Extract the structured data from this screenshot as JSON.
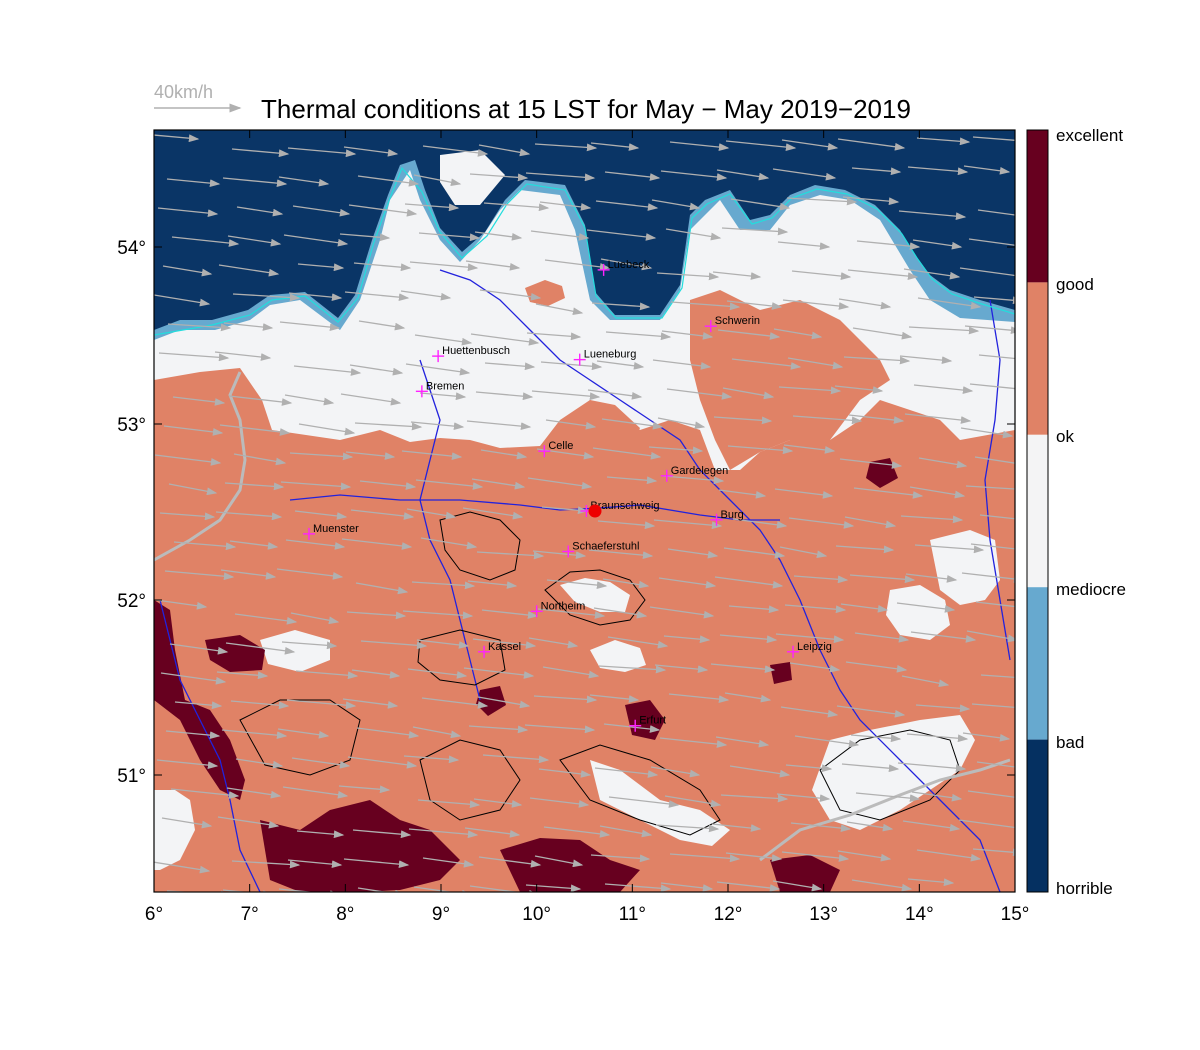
{
  "title": "Thermal conditions at 15 LST for May − May  2019−2019",
  "wind_reference": {
    "label": "40km/h",
    "arrow_color": "#b0b0b0"
  },
  "axes": {
    "lon_ticks": [
      "6°",
      "7°",
      "8°",
      "9°",
      "10°",
      "11°",
      "12°",
      "13°",
      "14°",
      "15°"
    ],
    "lat_ticks": [
      "54°",
      "53°",
      "52°",
      "51°"
    ]
  },
  "colorbar": {
    "labels": [
      "excellent",
      "good",
      "ok",
      "mediocre",
      "bad",
      "horrible"
    ],
    "bands": [
      {
        "color": "#67001f"
      },
      {
        "color": "#e08266"
      },
      {
        "color": "#f4f4f5"
      },
      {
        "color": "#f4f4f5"
      },
      {
        "color": "#67a9cf"
      },
      {
        "color": "#053061"
      }
    ]
  },
  "colors": {
    "sea": "#0a3566",
    "coast_band": "#67a9cf",
    "mediocre": "#f3f4f6",
    "ok": "#e08266",
    "excellent": "#67001f",
    "rivers": "#2222dd",
    "coastline": "#22dddd",
    "wind": "#b0b0b0",
    "city_marker": "#ff22ff",
    "site_marker": "#ee0000"
  },
  "site": {
    "name": "Braunschweig"
  },
  "cities": [
    {
      "name": "Luebeck",
      "lon": 10.7,
      "lat": 53.87
    },
    {
      "name": "Schwerin",
      "lon": 11.82,
      "lat": 53.55
    },
    {
      "name": "Huettenbusch",
      "lon": 8.97,
      "lat": 53.38
    },
    {
      "name": "Lueneburg",
      "lon": 10.45,
      "lat": 53.36
    },
    {
      "name": "Bremen",
      "lon": 8.8,
      "lat": 53.18
    },
    {
      "name": "Celle",
      "lon": 10.08,
      "lat": 52.84
    },
    {
      "name": "Gardelegen",
      "lon": 11.36,
      "lat": 52.7
    },
    {
      "name": "Braunschweig",
      "lon": 10.52,
      "lat": 52.5
    },
    {
      "name": "Burg",
      "lon": 11.88,
      "lat": 52.45
    },
    {
      "name": "Muenster",
      "lon": 7.62,
      "lat": 52.37
    },
    {
      "name": "Schaeferstuhl",
      "lon": 10.33,
      "lat": 52.27
    },
    {
      "name": "Northeim",
      "lon": 10.0,
      "lat": 51.93
    },
    {
      "name": "Kassel",
      "lon": 9.45,
      "lat": 51.7
    },
    {
      "name": "Leipzig",
      "lon": 12.68,
      "lat": 51.7
    },
    {
      "name": "Erfurt",
      "lon": 11.03,
      "lat": 51.28
    }
  ]
}
